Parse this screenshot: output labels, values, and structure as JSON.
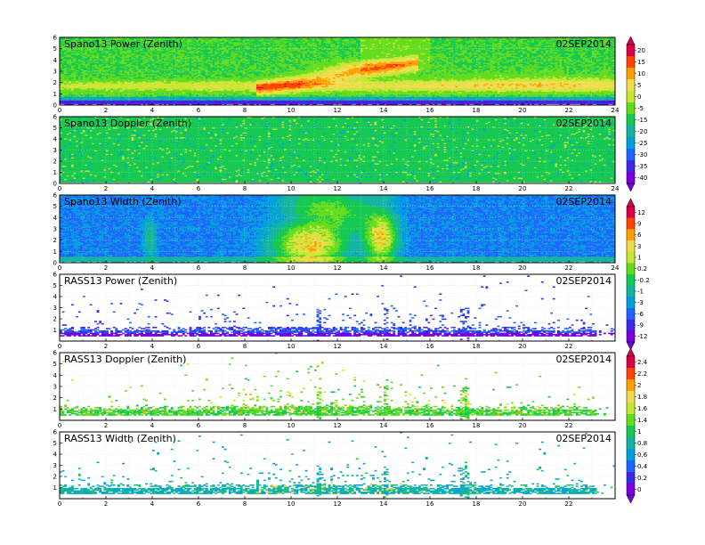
{
  "chart_data": [
    {
      "type": "heatmap",
      "title": "Spano13 Power (Zenith)",
      "date": "02SEP2014",
      "x_ticks": [
        "0",
        "2",
        "4",
        "6",
        "8",
        "10",
        "12",
        "14",
        "16",
        "18",
        "20",
        "22",
        "24"
      ],
      "y_ticks": [
        "0",
        "1",
        "2",
        "3",
        "4",
        "5",
        "6"
      ],
      "xlim": [
        0,
        24
      ],
      "ylim": [
        0,
        6
      ],
      "colorbar": "A",
      "pattern": "power"
    },
    {
      "type": "heatmap",
      "title": "Spano13 Doppler (Zenith)",
      "date": "02SEP2014",
      "x_ticks": [
        "0",
        "2",
        "4",
        "6",
        "8",
        "10",
        "12",
        "14",
        "16",
        "18",
        "20",
        "22",
        "24"
      ],
      "y_ticks": [
        "0",
        "1",
        "2",
        "3",
        "4",
        "5",
        "6"
      ],
      "xlim": [
        0,
        24
      ],
      "ylim": [
        0,
        6
      ],
      "colorbar": "A",
      "pattern": "doppler"
    },
    {
      "type": "heatmap",
      "title": "Spano13 Width (Zenith)",
      "date": "02SEP2014",
      "x_ticks": [
        "0",
        "2",
        "4",
        "6",
        "8",
        "10",
        "12",
        "14",
        "16",
        "18",
        "20",
        "22",
        "24"
      ],
      "y_ticks": [
        "0",
        "1",
        "2",
        "3",
        "4",
        "5",
        "6"
      ],
      "xlim": [
        0,
        24
      ],
      "ylim": [
        0,
        6
      ],
      "colorbar": "B",
      "pattern": "width"
    },
    {
      "type": "heatmap",
      "title": "RASS13 Power (Zenith)",
      "date": "02SEP2014",
      "x_ticks": [
        "0",
        "2",
        "4",
        "6",
        "8",
        "10",
        "12",
        "14",
        "16",
        "18",
        "20",
        "22"
      ],
      "y_ticks": [
        "1",
        "2",
        "3",
        "4",
        "5",
        "6"
      ],
      "xlim": [
        0,
        24
      ],
      "ylim": [
        0,
        6
      ],
      "colorbar": "B",
      "pattern": "rass_power"
    },
    {
      "type": "heatmap",
      "title": "RASS13 Doppler (Zenith)",
      "date": "02SEP2014",
      "x_ticks": [
        "0",
        "2",
        "4",
        "6",
        "8",
        "10",
        "12",
        "14",
        "16",
        "18",
        "20",
        "22"
      ],
      "y_ticks": [
        "1",
        "2",
        "3",
        "4",
        "5",
        "6"
      ],
      "xlim": [
        0,
        24
      ],
      "ylim": [
        0,
        6
      ],
      "colorbar": "C",
      "pattern": "rass_doppler"
    },
    {
      "type": "heatmap",
      "title": "RASS13 Width (Zenith)",
      "date": "02SEP2014",
      "x_ticks": [
        "0",
        "2",
        "4",
        "6",
        "8",
        "10",
        "12",
        "14",
        "16",
        "18",
        "20",
        "22"
      ],
      "y_ticks": [
        "1",
        "2",
        "3",
        "4",
        "5",
        "6"
      ],
      "xlim": [
        0,
        24
      ],
      "ylim": [
        0,
        6
      ],
      "colorbar": "C",
      "pattern": "rass_width"
    }
  ],
  "colorbars": {
    "A": {
      "labels": [
        "20",
        "15",
        "10",
        "5",
        "0",
        "-5",
        "-15",
        "-20",
        "-25",
        "-30",
        "-35",
        "-40"
      ],
      "colors": [
        "#d8004a",
        "#ff4400",
        "#ffa000",
        "#f0dc50",
        "#c8e632",
        "#64dc1e",
        "#14c850",
        "#14b4a0",
        "#00a0dc",
        "#1e64ff",
        "#3c28e6",
        "#7800dc"
      ]
    },
    "B": {
      "labels": [
        "12",
        "9",
        "6",
        "3",
        "1",
        "0.2",
        "-0.2",
        "-1",
        "-3",
        "-6",
        "-9",
        "-12"
      ],
      "colors": [
        "#d8004a",
        "#ff4400",
        "#ffa000",
        "#f0dc50",
        "#c8e632",
        "#64dc1e",
        "#14c850",
        "#14b4a0",
        "#00a0dc",
        "#1e64ff",
        "#3c28e6",
        "#7800dc"
      ]
    },
    "C": {
      "labels": [
        "2.4",
        "2.2",
        "2",
        "1.8",
        "1.6",
        "1.4",
        "1",
        "0.8",
        "0.6",
        "0.4",
        "0.2",
        "0"
      ],
      "colors": [
        "#d8004a",
        "#ff4400",
        "#ffa000",
        "#f0dc50",
        "#c8e632",
        "#64dc1e",
        "#14c850",
        "#14b4a0",
        "#00a0dc",
        "#1e64ff",
        "#3c28e6",
        "#7800dc"
      ]
    }
  }
}
